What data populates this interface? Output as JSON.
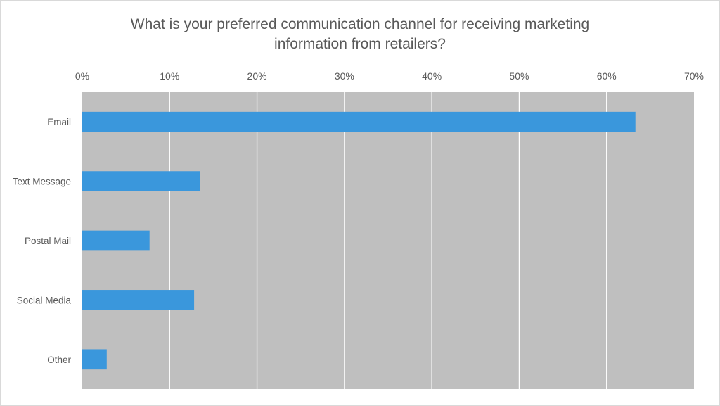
{
  "chart_data": {
    "type": "bar",
    "orientation": "horizontal",
    "title": "What is your preferred communication channel for receiving marketing information from retailers?",
    "title_lines": [
      "What is your preferred communication channel for receiving marketing",
      "information from retailers?"
    ],
    "categories": [
      "Email",
      "Text Message",
      "Postal Mail",
      "Social Media",
      "Other"
    ],
    "values": [
      63.3,
      13.5,
      7.7,
      12.8,
      2.8
    ],
    "xlim": [
      0,
      70
    ],
    "x_ticks": [
      0,
      10,
      20,
      30,
      40,
      50,
      60,
      70
    ],
    "x_tick_labels": [
      "0%",
      "10%",
      "20%",
      "30%",
      "40%",
      "50%",
      "60%",
      "70%"
    ],
    "x_axis_position": "top",
    "grid": true,
    "legend": "none",
    "colors": {
      "bar": "#3a97dc",
      "plot_background": "#bfbfbf",
      "grid": "#ffffff",
      "text": "#595959"
    }
  }
}
